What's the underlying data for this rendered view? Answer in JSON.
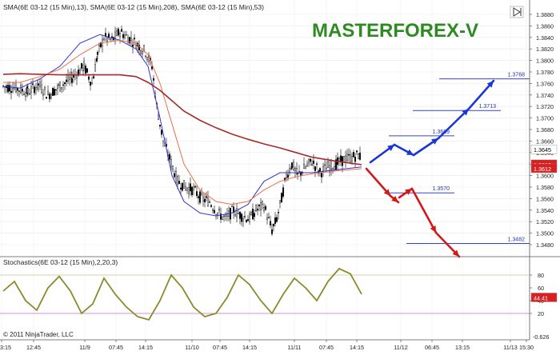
{
  "header": {
    "indicator_label": "SMA(6E 03-12 (15 Min),13), SMA(6E 03-12 (15 Min),208), SMA(6E 03-12 (15 Min),53)",
    "brand": "MASTERFOREX-V"
  },
  "stoch": {
    "label": "Stochastics(6E 03-12 (15 Min),2,20,3)",
    "copyright": "© 2011 NinjaTrader, LLC",
    "value_badge": "44.41",
    "bottom_value": "-0.626"
  },
  "price_badges": {
    "top": "1.3645",
    "mid": "1.3619",
    "low": "1.3612"
  },
  "colors": {
    "sma13": "#3333cc",
    "sma208": "#a52a2a",
    "sma53": "#e8714b",
    "brand": "#2e8b22",
    "up_arrow": "#1a35d8",
    "down_arrow": "#d41818",
    "stoch": "#8a8a2a",
    "badge_red": "#d82020"
  },
  "chart_data": [
    {
      "type": "candlestick",
      "title": "",
      "ylim": [
        1.3466,
        1.39
      ],
      "y_ticks": [
        "1.3880",
        "1.3860",
        "1.3840",
        "1.3820",
        "1.3800",
        "1.3780",
        "1.3760",
        "1.3740",
        "1.3720",
        "1.3700",
        "1.3680",
        "1.3660",
        "1.3640",
        "1.3620",
        "1.3600",
        "1.3580",
        "1.3560",
        "1.3540",
        "1.3520",
        "1.3500",
        "1.3480"
      ],
      "x_ticks": [
        "3:15",
        "12:45",
        "11/9",
        "07:45",
        "14:15",
        "11/10",
        "07:45",
        "14:15",
        "11/11",
        "07:45",
        "14:15",
        "11/12",
        "06:45",
        "13:15",
        "11/13",
        "15:30"
      ],
      "series": [
        {
          "name": "SMA(6E 03-12 (15 Min),13)",
          "values": [
            1.3755,
            1.3752,
            1.3768,
            1.379,
            1.383,
            1.3845,
            1.3835,
            1.382,
            1.379,
            1.37,
            1.36,
            1.3555,
            1.3535,
            1.353,
            1.3535,
            1.355,
            1.359,
            1.3605,
            1.3605,
            1.3605,
            1.361,
            1.3615
          ]
        },
        {
          "name": "SMA(6E 03-12 (15 Min),53)",
          "values": [
            1.3762,
            1.3762,
            1.3772,
            1.3785,
            1.381,
            1.383,
            1.3835,
            1.383,
            1.381,
            1.376,
            1.369,
            1.362,
            1.3575,
            1.3555,
            1.355,
            1.3555,
            1.3575,
            1.359,
            1.3598,
            1.3603,
            1.3608,
            1.3612
          ]
        },
        {
          "name": "SMA(6E 03-12 (15 Min),208)",
          "values": [
            1.3776,
            1.3777,
            1.3776,
            1.3775,
            1.3775,
            1.3775,
            1.3775,
            1.3772,
            1.3762,
            1.3748,
            1.373,
            1.3712,
            1.3696,
            1.3683,
            1.3672,
            1.3663,
            1.3655,
            1.3648,
            1.364,
            1.3632,
            1.3625,
            1.3619
          ]
        }
      ],
      "annotations": [
        {
          "label": "1.3768",
          "value": 1.3768
        },
        {
          "label": "1.3713",
          "value": 1.3713
        },
        {
          "label": "1.3669",
          "value": 1.3669
        },
        {
          "label": "1.3570",
          "value": 1.357
        },
        {
          "label": "1.3482",
          "value": 1.3482
        }
      ],
      "price_badges": [
        1.3645,
        1.3619,
        1.3612
      ]
    },
    {
      "type": "line",
      "title": "",
      "ylim": [
        0,
        100
      ],
      "y_ticks": [
        "80",
        "60",
        "40",
        "20"
      ],
      "series": [
        {
          "name": "Stochastics(6E 03-12 (15 Min),2,20,3)",
          "values": [
            55,
            70,
            40,
            25,
            60,
            78,
            55,
            20,
            35,
            75,
            50,
            30,
            15,
            10,
            40,
            80,
            60,
            30,
            15,
            20,
            45,
            80,
            65,
            40,
            20,
            50,
            75,
            60,
            40,
            70,
            90,
            82,
            50
          ]
        }
      ]
    }
  ]
}
